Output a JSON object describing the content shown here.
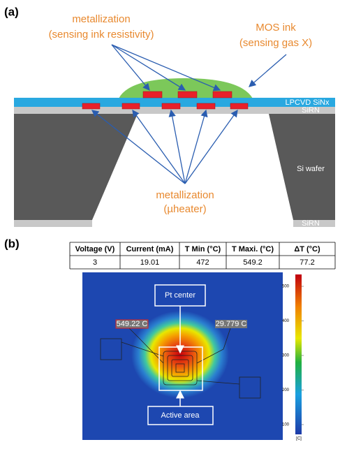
{
  "panel_a": {
    "label": "(a)",
    "annotations": {
      "top_metal": [
        "metallization",
        "(sensing ink resistivity)"
      ],
      "ink": [
        "MOS ink",
        "(sensing gas X)"
      ],
      "heater": [
        "metallization",
        "(µheater)"
      ]
    },
    "layers": {
      "top": "LPCVD SiNx",
      "middle": "SiRN",
      "wafer": "Si wafer",
      "bottom": "SiRN"
    }
  },
  "panel_b": {
    "label": "(b)",
    "table": {
      "header": [
        "Voltage (V)",
        "Current (mA)",
        "T Min (°C)",
        "T Maxi. (°C)",
        "ΔT (°C)"
      ],
      "rows": [
        [
          3,
          19.01,
          472,
          549.2,
          77.2
        ]
      ]
    },
    "image": {
      "center_label": "Pt center",
      "area_label": "Active area",
      "max_label": "549.22 C",
      "min_label": "29.779 C",
      "colorbar": {
        "ticks": [
          500,
          400,
          300,
          200,
          100
        ],
        "unit": "[C]"
      }
    }
  }
}
